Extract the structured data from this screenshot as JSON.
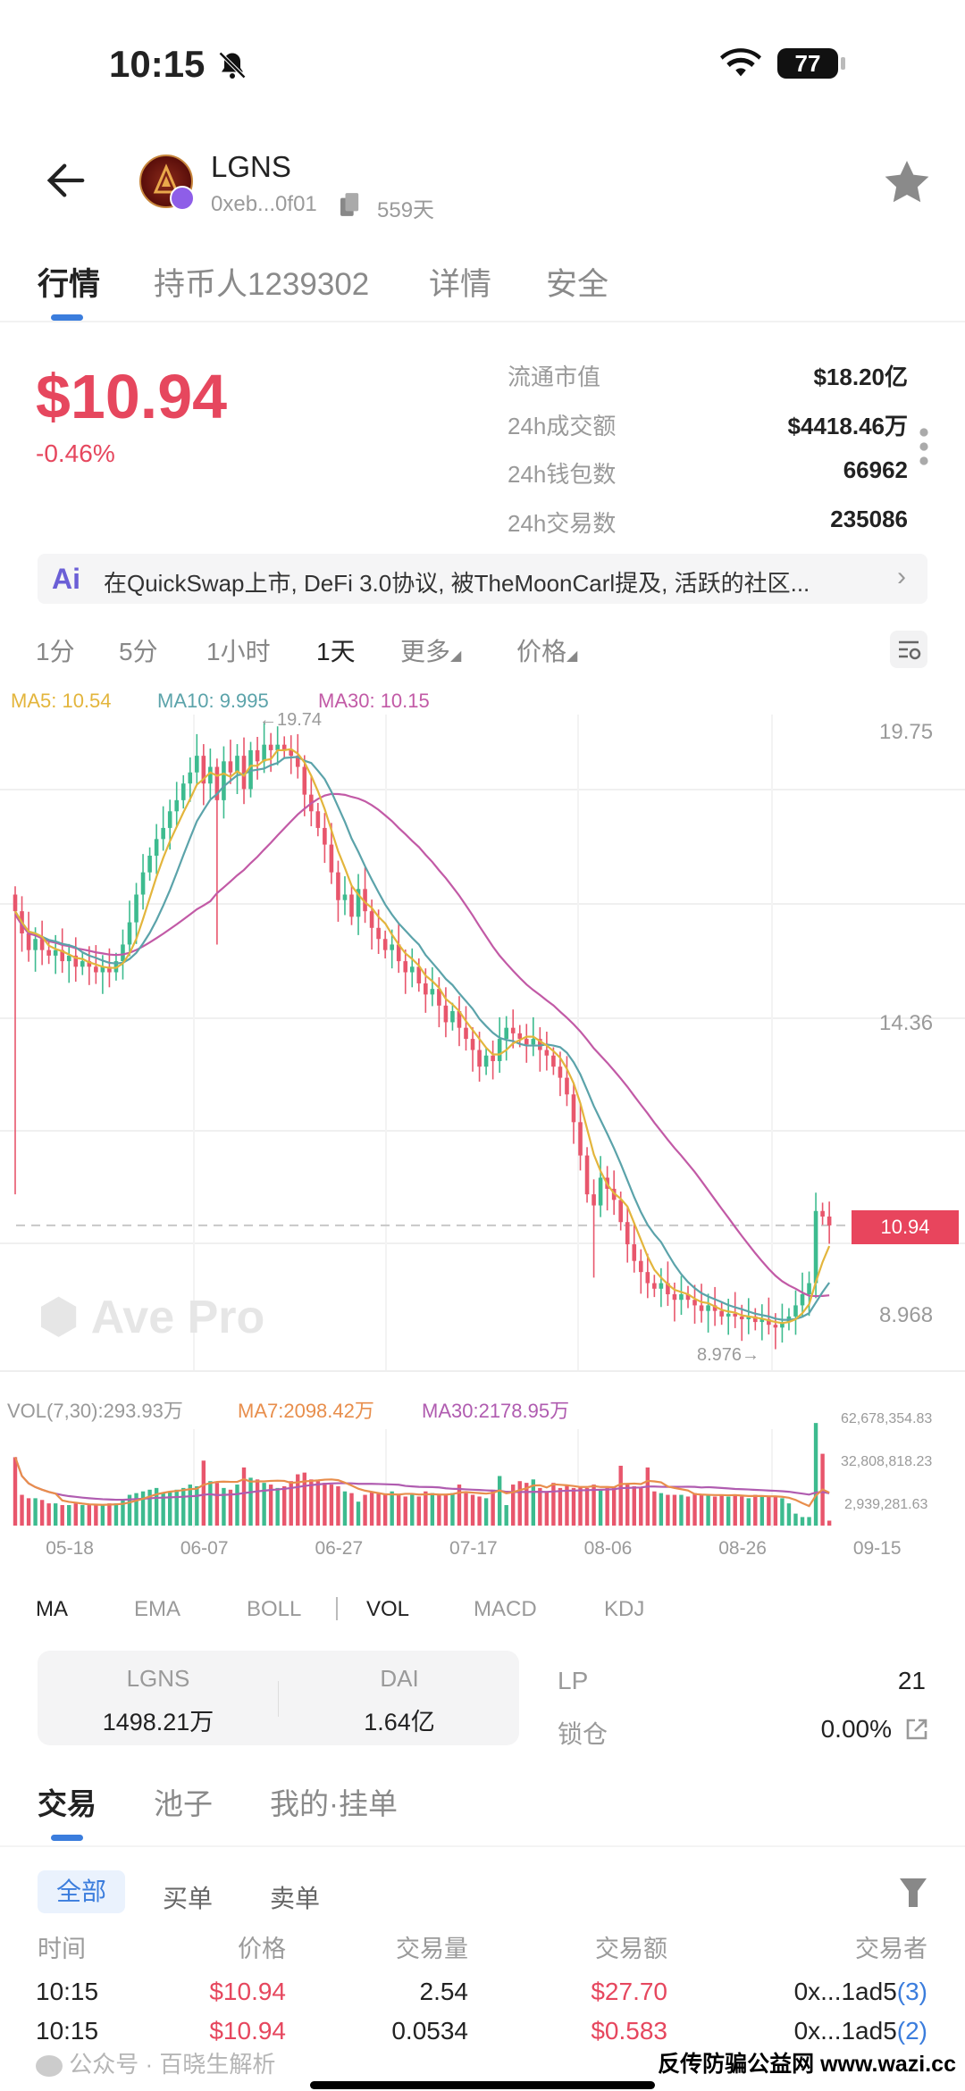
{
  "status_bar": {
    "time": "10:15",
    "battery": "77",
    "icons": [
      "bell-slash-icon",
      "wifi-icon",
      "battery-icon"
    ]
  },
  "header": {
    "symbol": "LGNS",
    "address": "0xeb...0f01",
    "age": "559天",
    "icons": [
      "back-arrow-icon",
      "copy-icon",
      "star-icon"
    ]
  },
  "tabs": [
    {
      "label": "行情",
      "active": true
    },
    {
      "label": "持币人1239302"
    },
    {
      "label": "详情"
    },
    {
      "label": "安全"
    }
  ],
  "price": {
    "value": "$10.94",
    "change": "-0.46%"
  },
  "stats": [
    {
      "label": "流通市值",
      "value": "$18.20亿"
    },
    {
      "label": "24h成交额",
      "value": "$4418.46万"
    },
    {
      "label": "24h钱包数",
      "value": "66962"
    },
    {
      "label": "24h交易数",
      "value": "235086"
    }
  ],
  "ai_banner": {
    "badge": "Ai",
    "text": "在QuickSwap上市, DeFi 3.0协议, 被TheMoonCarl提及, 活跃的社区..."
  },
  "periods": [
    {
      "label": "1分"
    },
    {
      "label": "5分"
    },
    {
      "label": "1小时"
    },
    {
      "label": "1天",
      "active": true
    },
    {
      "label": "更多"
    },
    {
      "label": "价格"
    }
  ],
  "ma_legend": {
    "ma5": "MA5: 10.54",
    "ma10": "MA10: 9.995",
    "ma30": "MA30: 10.15"
  },
  "colors": {
    "up": "#3dbb8f",
    "down": "#e8566c",
    "ma5": "#e3b53c",
    "ma10": "#5ba3aa",
    "ma30": "#c25aa6",
    "vol_ma7": "#e88e4c",
    "vol_ma30": "#b05cb0",
    "accent": "#3b7ddd"
  },
  "chart_data": [
    {
      "type": "candlestick",
      "interval": "1天",
      "y_ticks": [
        "19.75",
        "14.36",
        "8.968"
      ],
      "y_range": [
        8.968,
        19.75
      ],
      "high_label": "←19.74",
      "low_label": "8.976→",
      "high": 19.74,
      "low": 8.976,
      "current_price": "10.94",
      "watermark": "Ave Pro",
      "first_open": 16.9,
      "closes": [
        16.6,
        16.2,
        15.9,
        16.1,
        15.9,
        15.8,
        15.9,
        15.7,
        15.8,
        15.6,
        15.7,
        15.6,
        15.5,
        15.6,
        15.5,
        15.7,
        16.0,
        16.4,
        16.9,
        17.3,
        17.6,
        17.9,
        18.1,
        18.4,
        18.6,
        18.9,
        19.1,
        19.4,
        18.9,
        19.2,
        18.6,
        19.3,
        19.1,
        19.4,
        18.8,
        19.5,
        19.3,
        19.6,
        19.5,
        19.6,
        19.5,
        19.4,
        19.2,
        18.7,
        18.4,
        18.1,
        17.8,
        17.3,
        16.8,
        16.9,
        16.5,
        17.0,
        16.6,
        16.3,
        16.1,
        15.9,
        16.0,
        15.7,
        15.5,
        15.6,
        15.3,
        15.1,
        15.2,
        14.9,
        14.6,
        14.8,
        14.5,
        14.3,
        14.1,
        13.8,
        14.0,
        13.9,
        14.3,
        14.5,
        14.4,
        14.3,
        14.2,
        14.3,
        14.1,
        14.0,
        13.8,
        13.6,
        13.3,
        12.8,
        12.2,
        11.5,
        11.3,
        11.8,
        11.6,
        11.4,
        11.0,
        10.6,
        10.3,
        10.1,
        9.9,
        9.8,
        9.9,
        9.7,
        9.6,
        9.7,
        9.6,
        9.5,
        9.4,
        9.5,
        9.4,
        9.3,
        9.35,
        9.3,
        9.25,
        9.3,
        9.2,
        9.25,
        9.15,
        9.1,
        9.2,
        9.3,
        9.5,
        9.7,
        9.9,
        11.2,
        11.1,
        10.94
      ],
      "series": [
        {
          "name": "MA5"
        },
        {
          "name": "MA10"
        },
        {
          "name": "MA30"
        }
      ],
      "grid": true
    },
    {
      "type": "bar",
      "legend": {
        "vol": "VOL(7,30):293.93万",
        "ma7": "MA7:2098.42万",
        "ma30": "MA30:2178.95万"
      },
      "y_ticks": [
        "62,678,354.83",
        "32,808,818.23",
        "2,939,281.63"
      ],
      "y_max": 62678354.83,
      "x_ticks": [
        "05-18",
        "06-07",
        "06-27",
        "07-17",
        "08-06",
        "08-26",
        "09-15"
      ],
      "volumes_million": [
        40,
        18,
        16,
        16,
        15,
        13,
        13,
        12,
        12,
        13,
        12,
        12,
        12,
        12,
        13,
        13,
        15,
        18,
        19,
        20,
        21,
        22,
        19,
        20,
        21,
        22,
        24,
        23,
        38,
        26,
        25,
        22,
        21,
        24,
        34,
        28,
        27,
        25,
        24,
        22,
        23,
        26,
        30,
        31,
        27,
        26,
        25,
        24,
        23,
        20,
        19,
        14,
        18,
        20,
        19,
        18,
        20,
        18,
        17,
        18,
        17,
        20,
        19,
        18,
        18,
        19,
        24,
        19,
        18,
        17,
        16,
        21,
        29,
        12,
        24,
        26,
        25,
        27,
        22,
        20,
        25,
        22,
        24,
        22,
        23,
        22,
        24,
        21,
        22,
        23,
        35,
        24,
        23,
        22,
        34,
        20,
        19,
        18,
        18,
        18,
        17,
        19,
        18,
        18,
        17,
        18,
        17,
        18,
        17,
        16,
        18,
        17,
        17,
        17,
        16,
        13,
        7,
        5,
        5,
        60,
        42,
        2.9
      ],
      "series": [
        {
          "name": "MA7"
        },
        {
          "name": "MA30"
        }
      ]
    }
  ],
  "indicators": [
    {
      "label": "MA",
      "active": true
    },
    {
      "label": "EMA"
    },
    {
      "label": "BOLL"
    },
    {
      "label": "VOL",
      "active": true
    },
    {
      "label": "MACD"
    },
    {
      "label": "KDJ"
    }
  ],
  "pool": {
    "token_a": "LGNS",
    "amount_a": "1498.21万",
    "token_b": "DAI",
    "amount_b": "1.64亿",
    "lp_label": "LP",
    "lp_value": "21",
    "lock_label": "锁仓",
    "lock_value": "0.00%"
  },
  "section_tabs": [
    {
      "label": "交易",
      "active": true
    },
    {
      "label": "池子"
    },
    {
      "label": "我的·挂单"
    }
  ],
  "filters": [
    {
      "label": "全部",
      "active": true
    },
    {
      "label": "买单"
    },
    {
      "label": "卖单"
    }
  ],
  "trades": {
    "columns": [
      "时间",
      "价格",
      "交易量",
      "交易额",
      "交易者"
    ],
    "rows": [
      {
        "time": "10:15",
        "price": "$10.94",
        "amount": "2.54",
        "value": "$27.70",
        "trader": "0x...1ad5",
        "count": "(3)"
      },
      {
        "time": "10:15",
        "price": "$10.94",
        "amount": "0.0534",
        "value": "$0.583",
        "trader": "0x...1ad5",
        "count": "(2)"
      }
    ]
  },
  "watermark": {
    "wechat": "公众号 · 百晓生解析",
    "site": "反传防骗公益网 www.wazi.cc"
  }
}
